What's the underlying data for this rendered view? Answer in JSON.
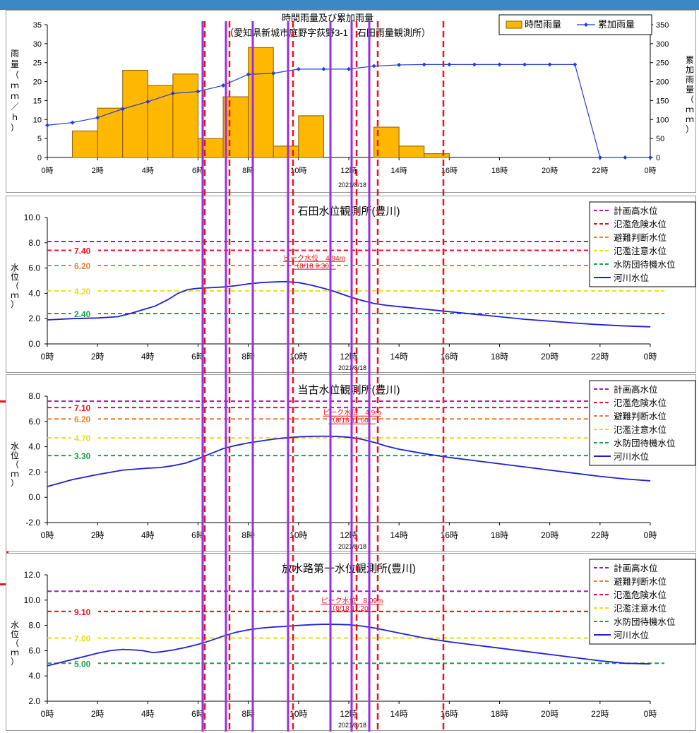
{
  "chart_data": [
    {
      "type": "bar",
      "title": "時間雨量及び累加雨量",
      "subtitle": "（愛知県新城市庭野字荻野3-1　石田雨量観測所）",
      "ylabel": "雨量（ｍｍ／ｈ）",
      "y2label": "累加雨量（ｍｍ）",
      "date_label": "2021/8/18",
      "ylim": [
        0,
        35
      ],
      "y2lim": [
        0,
        350
      ],
      "y_ticks": [
        "0",
        "5",
        "10",
        "15",
        "20",
        "25",
        "30",
        "35"
      ],
      "y2_ticks": [
        "0",
        "50",
        "100",
        "150",
        "200",
        "250",
        "300",
        "350"
      ],
      "x_ticks": [
        "0時",
        "2時",
        "4時",
        "6時",
        "8時",
        "10時",
        "12時",
        "14時",
        "16時",
        "18時",
        "20時",
        "22時",
        "0時"
      ],
      "legend_position": "top-right",
      "series": [
        {
          "name": "時間雨量",
          "kind": "bar",
          "color": "#ffb800",
          "values": [
            0,
            7,
            13,
            23,
            19,
            22,
            5,
            16,
            29,
            3,
            11,
            0,
            0,
            8,
            3,
            1,
            0,
            0,
            0,
            0,
            0,
            0,
            0,
            0
          ]
        },
        {
          "name": "累加雨量",
          "kind": "line",
          "color": "#1f3fd6",
          "x": [
            0,
            1,
            2,
            3,
            4,
            5,
            6,
            7,
            8,
            9,
            10,
            11,
            12,
            13,
            14,
            15,
            16,
            17,
            18,
            19,
            20,
            21,
            22,
            23,
            24
          ],
          "values": [
            85,
            92,
            105,
            128,
            147,
            169,
            174,
            190,
            219,
            222,
            233,
            233,
            233,
            241,
            244,
            245,
            245,
            245,
            245,
            245,
            245,
            245,
            0,
            0,
            0
          ]
        }
      ]
    },
    {
      "type": "line",
      "title": "石田水位観測所(豊川)",
      "ylabel": "水位（ｍ）",
      "date_label": "2021/8/18",
      "ylim": [
        0,
        10
      ],
      "y_ticks": [
        "0.0",
        "2.0",
        "4.0",
        "6.0",
        "8.0",
        "10.0"
      ],
      "x_ticks": [
        "0時",
        "2時",
        "4時",
        "6時",
        "8時",
        "10時",
        "12時",
        "14時",
        "16時",
        "18時",
        "20時",
        "22時",
        "0時"
      ],
      "legend_position": "top-right",
      "thresholds": [
        {
          "name": "計画高水位",
          "value": 8.1,
          "color": "#a21caf",
          "label": ""
        },
        {
          "name": "氾濫危険水位",
          "value": 7.4,
          "color": "#e8141b",
          "label": "7.40"
        },
        {
          "name": "避難判断水位",
          "value": 6.2,
          "color": "#ee7d2b",
          "label": "6.20"
        },
        {
          "name": "氾濫注意水位",
          "value": 4.2,
          "color": "#e6e10c",
          "label": "4.20"
        },
        {
          "name": "水防団待機水位",
          "value": 2.4,
          "color": "#16a34a",
          "label": "2.40"
        }
      ],
      "series": [
        {
          "name": "河川水位",
          "color": "#1f1fd6",
          "x": [
            0,
            1,
            2,
            2.8,
            3.3,
            3.8,
            4.3,
            4.8,
            5.2,
            5.6,
            6,
            6.5,
            7,
            7.5,
            8,
            8.5,
            9,
            9.5,
            10,
            10.5,
            11,
            11.5,
            12,
            12.5,
            13,
            13.5,
            14,
            15,
            15.5,
            16,
            17,
            18,
            19,
            20,
            21,
            22,
            23,
            24
          ],
          "values": [
            1.9,
            2.0,
            2.05,
            2.15,
            2.4,
            2.7,
            3.0,
            3.5,
            4.0,
            4.3,
            4.4,
            4.45,
            4.5,
            4.6,
            4.75,
            4.85,
            4.9,
            4.93,
            4.85,
            4.65,
            4.4,
            4.1,
            3.75,
            3.45,
            3.2,
            3.05,
            2.95,
            2.75,
            2.65,
            2.55,
            2.35,
            2.15,
            1.95,
            1.8,
            1.65,
            1.52,
            1.42,
            1.35
          ]
        }
      ],
      "annotation": {
        "text": "ピーク水位　4.94m",
        "subtext": "（8/18 9:30）",
        "color": "#e8141b"
      }
    },
    {
      "type": "line",
      "title": "当古水位観測所(豊川)",
      "ylabel": "水位（ｍ）",
      "date_label": "2021/8/18",
      "ylim": [
        -2,
        8
      ],
      "y_ticks": [
        "-2.0",
        "0.0",
        "2.0",
        "4.0",
        "6.0",
        "8.0"
      ],
      "x_ticks": [
        "0時",
        "2時",
        "4時",
        "6時",
        "8時",
        "10時",
        "12時",
        "14時",
        "16時",
        "18時",
        "20時",
        "22時",
        "0時"
      ],
      "legend_position": "top-right",
      "thresholds": [
        {
          "name": "計画高水位",
          "value": 7.6,
          "color": "#a21caf",
          "label": ""
        },
        {
          "name": "氾濫危険水位",
          "value": 7.1,
          "color": "#e8141b",
          "label": "7.10"
        },
        {
          "name": "避難判断水位",
          "value": 6.2,
          "color": "#ee7d2b",
          "label": "6.20"
        },
        {
          "name": "氾濫注意水位",
          "value": 4.7,
          "color": "#e6e10c",
          "label": "4.70"
        },
        {
          "name": "水防団待機水位",
          "value": 3.3,
          "color": "#16a34a",
          "label": "3.30"
        }
      ],
      "series": [
        {
          "name": "河川水位",
          "color": "#1f1fd6",
          "x": [
            0,
            1,
            2,
            3,
            4,
            4.5,
            5,
            5.5,
            6,
            6.5,
            7,
            7.5,
            8,
            8.5,
            9,
            9.5,
            10,
            10.5,
            11,
            11.5,
            12,
            12.5,
            13,
            13.5,
            14,
            15,
            15.5,
            16,
            17,
            18,
            19,
            20,
            21,
            22,
            23,
            24
          ],
          "values": [
            0.85,
            1.4,
            1.8,
            2.15,
            2.3,
            2.35,
            2.5,
            2.7,
            3.05,
            3.45,
            3.85,
            4.1,
            4.3,
            4.45,
            4.6,
            4.7,
            4.78,
            4.82,
            4.83,
            4.82,
            4.75,
            4.6,
            4.35,
            4.05,
            3.8,
            3.45,
            3.3,
            3.15,
            2.9,
            2.65,
            2.4,
            2.15,
            1.9,
            1.65,
            1.45,
            1.3
          ]
        }
      ],
      "annotation": {
        "text": "ピーク水位　4.9m",
        "subtext": "（8/18 11:00）",
        "color": "#e8141b"
      }
    },
    {
      "type": "line",
      "title": "放水路第一水位観測所(豊川)",
      "ylabel": "水位（ｍ）",
      "date_label": "2021/8/18",
      "ylim": [
        2,
        12
      ],
      "y_ticks": [
        "2.0",
        "4.0",
        "6.0",
        "8.0",
        "10.0",
        "12.0"
      ],
      "x_ticks": [
        "0時",
        "2時",
        "4時",
        "6時",
        "8時",
        "10時",
        "12時",
        "14時",
        "16時",
        "18時",
        "20時",
        "22時",
        "0時"
      ],
      "legend_position": "top-right",
      "thresholds": [
        {
          "name": "計画高水位",
          "value": 10.7,
          "color": "#a21caf",
          "label": ""
        },
        {
          "name": "避難判断水位",
          "value": 9.1,
          "color": "#ee7d2b",
          "label": ""
        },
        {
          "name": "氾濫危険水位",
          "value": 9.1,
          "color": "#e8141b",
          "label": "9.10"
        },
        {
          "name": "氾濫注意水位",
          "value": 7.0,
          "color": "#e6e10c",
          "label": "7.00"
        },
        {
          "name": "水防団待機水位",
          "value": 5.0,
          "color": "#16a34a",
          "label": "5.00"
        }
      ],
      "series": [
        {
          "name": "河川水位",
          "color": "#1f1fd6",
          "x": [
            0,
            0.5,
            1,
            1.5,
            2,
            2.5,
            3,
            3.5,
            3.8,
            4.2,
            4.5,
            5,
            5.5,
            6,
            6.5,
            7,
            7.5,
            8,
            8.5,
            9,
            9.5,
            10,
            10.5,
            11,
            11.5,
            12,
            12.5,
            13,
            13.5,
            14,
            15,
            16,
            17,
            18,
            19,
            20,
            21,
            22,
            23,
            24
          ],
          "values": [
            4.8,
            5.05,
            5.3,
            5.55,
            5.8,
            6.0,
            6.1,
            6.05,
            6.0,
            5.85,
            5.9,
            6.05,
            6.25,
            6.5,
            6.8,
            7.15,
            7.45,
            7.65,
            7.78,
            7.87,
            7.92,
            8.0,
            8.05,
            8.09,
            8.08,
            8.05,
            7.95,
            7.8,
            7.6,
            7.4,
            7.0,
            6.7,
            6.45,
            6.2,
            5.95,
            5.7,
            5.45,
            5.2,
            5.0,
            4.95
          ]
        }
      ],
      "annotation": {
        "text": "ピーク水位　8.09m",
        "subtext": "（8/18 11:20）",
        "color": "#e8141b"
      }
    }
  ]
}
